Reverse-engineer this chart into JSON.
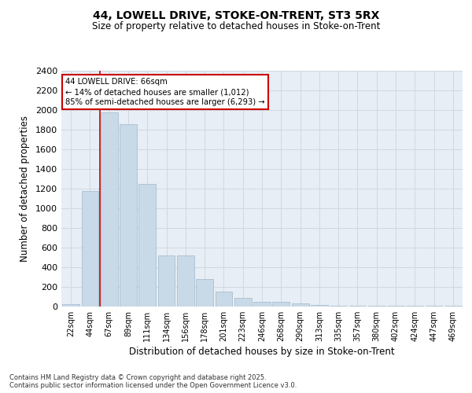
{
  "title_line1": "44, LOWELL DRIVE, STOKE-ON-TRENT, ST3 5RX",
  "title_line2": "Size of property relative to detached houses in Stoke-on-Trent",
  "xlabel": "Distribution of detached houses by size in Stoke-on-Trent",
  "ylabel": "Number of detached properties",
  "categories": [
    "22sqm",
    "44sqm",
    "67sqm",
    "89sqm",
    "111sqm",
    "134sqm",
    "156sqm",
    "178sqm",
    "201sqm",
    "223sqm",
    "246sqm",
    "268sqm",
    "290sqm",
    "313sqm",
    "335sqm",
    "357sqm",
    "380sqm",
    "402sqm",
    "424sqm",
    "447sqm",
    "469sqm"
  ],
  "values": [
    25,
    1175,
    1975,
    1860,
    1245,
    520,
    520,
    280,
    155,
    85,
    45,
    45,
    35,
    15,
    5,
    5,
    5,
    5,
    5,
    5,
    5
  ],
  "bar_color": "#c8d9e8",
  "bar_edgecolor": "#a0b8cc",
  "annotation_text": "44 LOWELL DRIVE: 66sqm\n← 14% of detached houses are smaller (1,012)\n85% of semi-detached houses are larger (6,293) →",
  "annotation_box_facecolor": "#ffffff",
  "annotation_box_edgecolor": "#cc0000",
  "vline_color": "#cc0000",
  "vline_x": 1.5,
  "ylim": [
    0,
    2400
  ],
  "yticks": [
    0,
    200,
    400,
    600,
    800,
    1000,
    1200,
    1400,
    1600,
    1800,
    2000,
    2200,
    2400
  ],
  "grid_color": "#d0d8e0",
  "bg_color": "#e8eef5",
  "footer_line1": "Contains HM Land Registry data © Crown copyright and database right 2025.",
  "footer_line2": "Contains public sector information licensed under the Open Government Licence v3.0."
}
